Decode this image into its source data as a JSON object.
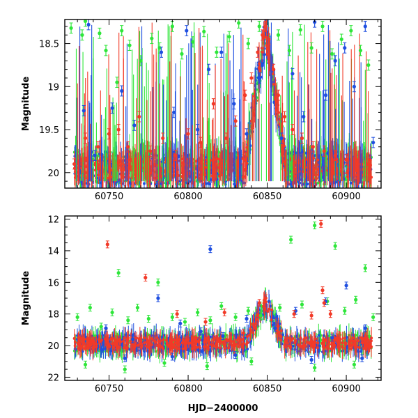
{
  "chart_data": [
    {
      "type": "scatter",
      "panel": "top",
      "title": "",
      "xlabel": "",
      "ylabel": "Magnitude",
      "xlim": [
        60722,
        60922
      ],
      "ylim": [
        20.18,
        18.22
      ],
      "y_inverted": true,
      "xticks": [
        60750,
        60800,
        60850,
        60900
      ],
      "yticks": [
        18.5,
        19,
        19.5,
        20
      ],
      "ytick_labels": [
        "18.5",
        "19",
        "19.5",
        "20"
      ],
      "grid": false,
      "legend": "none",
      "series": [
        {
          "color": "#2ee63a",
          "points": [
            [
              60726,
              18.32
            ],
            [
              60733,
              18.4
            ],
            [
              60735,
              18.24
            ],
            [
              60744,
              18.38
            ],
            [
              60748,
              18.58
            ],
            [
              60755,
              18.95
            ],
            [
              60758,
              18.35
            ],
            [
              60763,
              18.52
            ],
            [
              60770,
              18.7
            ],
            [
              60777,
              18.44
            ],
            [
              60782,
              18.55
            ],
            [
              60790,
              18.3
            ],
            [
              60796,
              18.62
            ],
            [
              60803,
              18.48
            ],
            [
              60810,
              18.36
            ],
            [
              60818,
              18.6
            ],
            [
              60826,
              18.42
            ],
            [
              60832,
              18.26
            ],
            [
              60838,
              18.5
            ],
            [
              60845,
              18.3
            ],
            [
              60857,
              18.4
            ],
            [
              60864,
              18.58
            ],
            [
              60871,
              18.34
            ],
            [
              60878,
              18.55
            ],
            [
              60885,
              18.3
            ],
            [
              60891,
              18.62
            ],
            [
              60897,
              18.45
            ],
            [
              60903,
              18.35
            ],
            [
              60909,
              18.58
            ],
            [
              60914,
              18.75
            ]
          ]
        },
        {
          "color": "#1f4fe0",
          "points": [
            [
              60734,
              19.28
            ],
            [
              60737,
              18.28
            ],
            [
              60741,
              19.8
            ],
            [
              60752,
              19.25
            ],
            [
              60758,
              19.05
            ],
            [
              60766,
              19.45
            ],
            [
              60783,
              18.6
            ],
            [
              60791,
              19.3
            ],
            [
              60799,
              18.35
            ],
            [
              60806,
              19.5
            ],
            [
              60813,
              18.8
            ],
            [
              60821,
              18.6
            ],
            [
              60829,
              19.2
            ],
            [
              60837,
              19.55
            ],
            [
              60845,
              18.9
            ],
            [
              60859,
              19.6
            ],
            [
              60866,
              18.85
            ],
            [
              60873,
              19.35
            ],
            [
              60880,
              18.25
            ],
            [
              60887,
              19.1
            ],
            [
              60893,
              18.7
            ],
            [
              60899,
              18.55
            ],
            [
              60905,
              19.0
            ],
            [
              60912,
              18.3
            ],
            [
              60917,
              19.65
            ]
          ]
        },
        {
          "color": "#f23a28",
          "points": [
            [
              60728,
              19.9
            ],
            [
              60735,
              19.6
            ],
            [
              60743,
              19.7
            ],
            [
              60750,
              19.55
            ],
            [
              60756,
              19.5
            ],
            [
              60762,
              19.7
            ],
            [
              60769,
              19.35
            ],
            [
              60776,
              19.75
            ],
            [
              60784,
              19.6
            ],
            [
              60792,
              19.8
            ],
            [
              60800,
              19.55
            ],
            [
              60808,
              19.65
            ],
            [
              60816,
              19.2
            ],
            [
              60824,
              19.6
            ],
            [
              60830,
              19.4
            ],
            [
              60836,
              19.1
            ],
            [
              60840,
              18.9
            ],
            [
              60844,
              18.6
            ],
            [
              60847,
              18.4
            ],
            [
              60849,
              18.3
            ],
            [
              60851,
              18.45
            ],
            [
              60854,
              18.8
            ],
            [
              60857,
              19.1
            ],
            [
              60861,
              19.35
            ],
            [
              60866,
              19.5
            ],
            [
              60872,
              19.6
            ],
            [
              60879,
              19.7
            ],
            [
              60886,
              19.75
            ],
            [
              60893,
              19.8
            ],
            [
              60900,
              19.85
            ],
            [
              60907,
              19.9
            ],
            [
              60914,
              19.9
            ]
          ]
        }
      ]
    },
    {
      "type": "scatter",
      "panel": "bottom",
      "title": "",
      "xlabel": "HJD−2400000",
      "ylabel": "Magnitude",
      "xlim": [
        60722,
        60922
      ],
      "ylim": [
        22.2,
        11.8
      ],
      "y_inverted": true,
      "xticks": [
        60750,
        60800,
        60850,
        60900
      ],
      "yticks": [
        12,
        14,
        16,
        18,
        20,
        22
      ],
      "ytick_labels": [
        "12",
        "14",
        "16",
        "18",
        "20",
        "22"
      ],
      "grid": false,
      "legend": "none",
      "series": [
        {
          "color": "#2ee63a",
          "points": [
            [
              60730,
              18.2
            ],
            [
              60738,
              17.6
            ],
            [
              60745,
              18.8
            ],
            [
              60752,
              17.9
            ],
            [
              60756,
              15.4
            ],
            [
              60762,
              18.4
            ],
            [
              60768,
              17.6
            ],
            [
              60775,
              18.3
            ],
            [
              60781,
              16.0
            ],
            [
              60790,
              18.2
            ],
            [
              60798,
              18.5
            ],
            [
              60806,
              17.9
            ],
            [
              60814,
              18.4
            ],
            [
              60821,
              17.5
            ],
            [
              60830,
              18.2
            ],
            [
              60838,
              17.8
            ],
            [
              60846,
              18.1
            ],
            [
              60858,
              17.6
            ],
            [
              60865,
              13.3
            ],
            [
              60872,
              17.4
            ],
            [
              60880,
              12.4
            ],
            [
              60888,
              17.2
            ],
            [
              60893,
              13.7
            ],
            [
              60899,
              17.8
            ],
            [
              60906,
              17.1
            ],
            [
              60912,
              15.1
            ],
            [
              60917,
              18.2
            ],
            [
              60735,
              21.2
            ],
            [
              60760,
              21.5
            ],
            [
              60785,
              21.1
            ],
            [
              60812,
              21.3
            ],
            [
              60840,
              21.0
            ],
            [
              60880,
              21.4
            ],
            [
              60905,
              21.2
            ]
          ]
        },
        {
          "color": "#1f4fe0",
          "points": [
            [
              60748,
              18.9
            ],
            [
              60765,
              19.6
            ],
            [
              60781,
              17.0
            ],
            [
              60795,
              18.6
            ],
            [
              60808,
              19.1
            ],
            [
              60814,
              13.9
            ],
            [
              60822,
              19.4
            ],
            [
              60837,
              18.3
            ],
            [
              60855,
              18.9
            ],
            [
              60868,
              17.8
            ],
            [
              60887,
              17.2
            ],
            [
              60891,
              19.5
            ],
            [
              60900,
              16.2
            ],
            [
              60912,
              18.9
            ],
            [
              60760,
              20.8
            ],
            [
              60790,
              20.7
            ],
            [
              60830,
              20.6
            ],
            [
              60878,
              20.9
            ],
            [
              60910,
              20.8
            ]
          ]
        },
        {
          "color": "#f23a28",
          "points": [
            [
              60749,
              13.6
            ],
            [
              60773,
              15.7
            ],
            [
              60793,
              18.0
            ],
            [
              60811,
              18.5
            ],
            [
              60823,
              17.9
            ],
            [
              60845,
              17.3
            ],
            [
              60849,
              17.0
            ],
            [
              60867,
              18.0
            ],
            [
              60878,
              18.1
            ],
            [
              60884,
              12.3
            ],
            [
              60885,
              16.5
            ],
            [
              60886,
              17.3
            ],
            [
              60890,
              18.0
            ],
            [
              60740,
              19.7
            ],
            [
              60790,
              19.9
            ],
            [
              60835,
              19.2
            ],
            [
              60880,
              19.8
            ],
            [
              60915,
              19.9
            ]
          ]
        }
      ]
    }
  ]
}
